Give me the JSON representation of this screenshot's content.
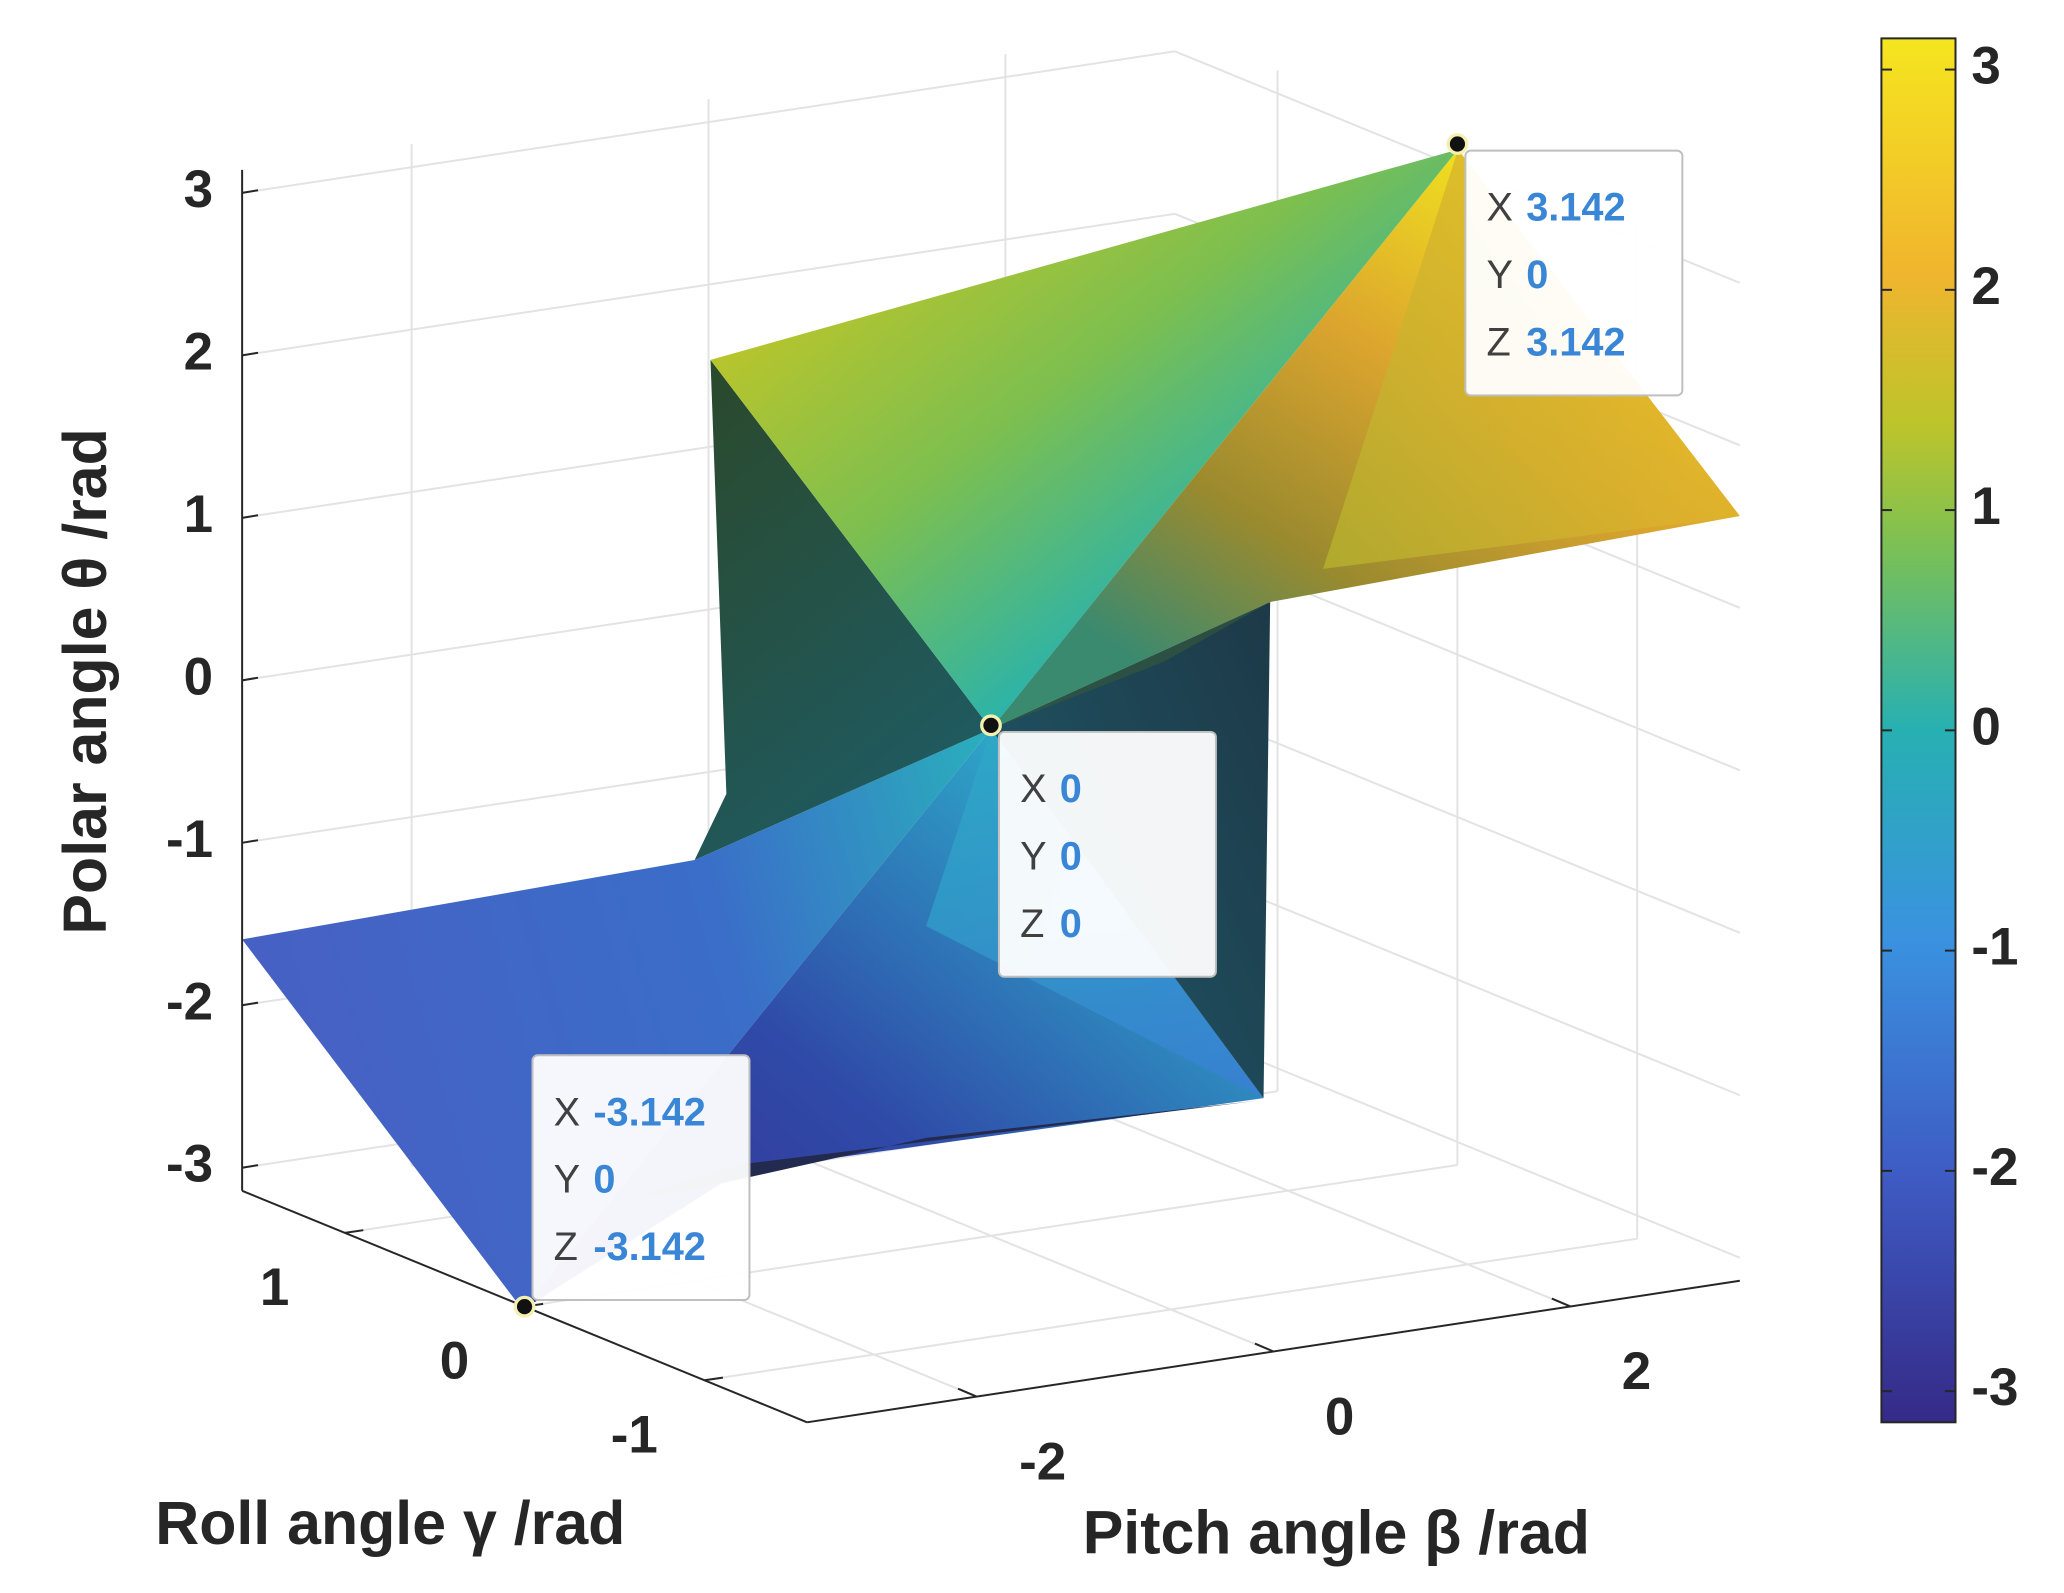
{
  "chart_data": {
    "type": "surface",
    "xlabel": "Pitch angle β /rad",
    "ylabel": "Roll angle γ /rad",
    "zlabel": "Polar angle θ /rad",
    "xlim": [
      -3.1416,
      3.1416
    ],
    "ylim": [
      -1.5708,
      1.5708
    ],
    "zlim": [
      -3.1416,
      3.1416
    ],
    "xticks": [
      -2,
      0,
      2
    ],
    "yticks": [
      -1,
      0,
      1
    ],
    "zticks": [
      -3,
      -2,
      -1,
      0,
      1,
      2,
      3
    ],
    "grid": true,
    "colorbar": {
      "clim": [
        -3.1416,
        3.1416
      ],
      "ticks": [
        -3,
        -2,
        -1,
        0,
        1,
        2,
        3
      ]
    },
    "datatip_fields": [
      "X",
      "Y",
      "Z"
    ],
    "datatips": [
      {
        "x": 3.142,
        "y": 0,
        "z": 3.142
      },
      {
        "x": 0,
        "y": 0,
        "z": 0
      },
      {
        "x": -3.142,
        "y": 0,
        "z": -3.142
      }
    ]
  }
}
